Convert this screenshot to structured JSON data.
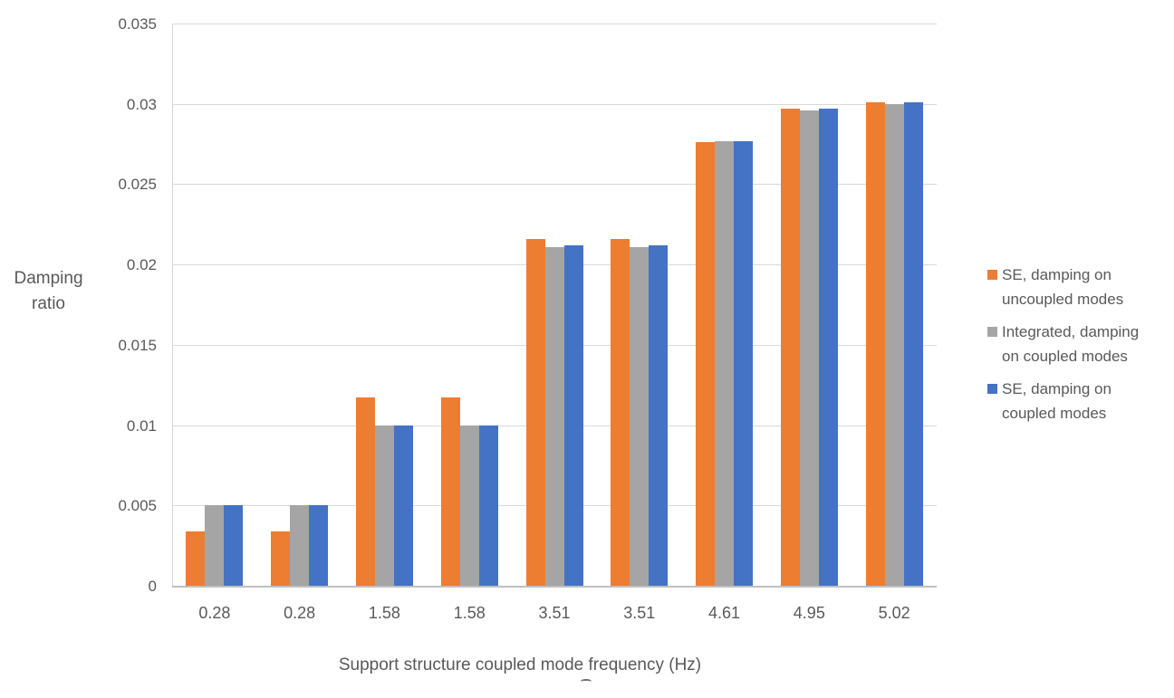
{
  "chart_data": {
    "type": "bar",
    "title": "",
    "xlabel": "Support structure coupled mode frequency (Hz)",
    "ylabel": "Damping ratio",
    "ylabel_lines": [
      "Damping",
      "ratio"
    ],
    "categories": [
      "0.28",
      "0.28",
      "1.58",
      "1.58",
      "3.51",
      "3.51",
      "4.61",
      "4.95",
      "5.02"
    ],
    "series": [
      {
        "name": "SE, damping on uncoupled modes",
        "color": "#ED7D31",
        "values": [
          0.0034,
          0.0034,
          0.0117,
          0.0117,
          0.0216,
          0.0216,
          0.0276,
          0.0297,
          0.0301
        ]
      },
      {
        "name": "Integrated, damping on coupled modes",
        "color": "#A5A5A5",
        "values": [
          0.005,
          0.005,
          0.01,
          0.01,
          0.0211,
          0.0211,
          0.0277,
          0.0296,
          0.03
        ]
      },
      {
        "name": "SE, damping on coupled modes",
        "color": "#4472C4",
        "values": [
          0.005,
          0.005,
          0.01,
          0.01,
          0.0212,
          0.0212,
          0.0277,
          0.0297,
          0.0301
        ]
      }
    ],
    "ylim": [
      0,
      0.035
    ],
    "y_ticks": [
      "0",
      "0.005",
      "0.01",
      "0.015",
      "0.02",
      "0.025",
      "0.03",
      "0.035"
    ],
    "grid": true,
    "legend_position": "right",
    "legend_items": [
      {
        "color": "#ED7D31",
        "label_lines": [
          "SE, damping on",
          "uncoupled modes"
        ]
      },
      {
        "color": "#A5A5A5",
        "label_lines": [
          "Integrated, damping",
          "on coupled modes"
        ]
      },
      {
        "color": "#4472C4",
        "label_lines": [
          "SE, damping on",
          "coupled modes"
        ]
      }
    ],
    "colors": {
      "grid": "#D9D9D9",
      "axis": "#BFBFBF",
      "text": "#595959"
    }
  }
}
